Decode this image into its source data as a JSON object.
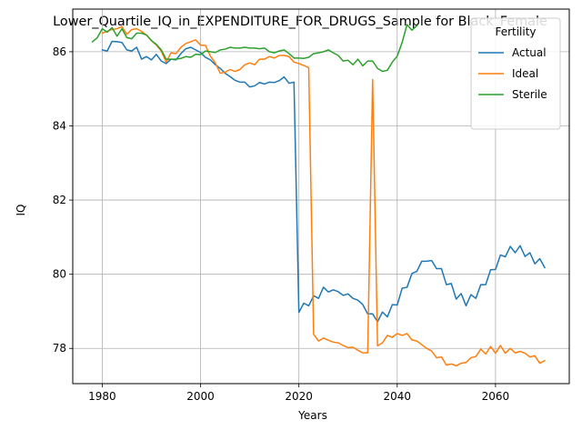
{
  "chart_data": {
    "type": "line",
    "title": "Lower_Quartile_IQ_in_EXPENDITURE_FOR_DRUGS_Sample for Black_Female",
    "xlabel": "Years",
    "ylabel": "IQ",
    "xlim": [
      1974,
      2075
    ],
    "ylim": [
      77.05,
      87.15
    ],
    "xticks": [
      1980,
      2000,
      2020,
      2040,
      2060
    ],
    "yticks": [
      78,
      80,
      82,
      84,
      86
    ],
    "grid": true,
    "legend": {
      "title": "Fertility",
      "placement": "upper right"
    },
    "series": [
      {
        "name": "Actual",
        "color": "#1f77b4",
        "x": [
          1980,
          1981,
          1982,
          1983,
          1984,
          1985,
          1986,
          1987,
          1988,
          1989,
          1990,
          1991,
          1992,
          1993,
          1994,
          1995,
          1996,
          1997,
          1998,
          1999,
          2000,
          2001,
          2002,
          2003,
          2004,
          2005,
          2006,
          2007,
          2008,
          2009,
          2010,
          2011,
          2012,
          2013,
          2014,
          2015,
          2016,
          2017,
          2018,
          2019,
          2020,
          2021,
          2022,
          2023,
          2024,
          2025,
          2026,
          2027,
          2028,
          2029,
          2030,
          2031,
          2032,
          2033,
          2034,
          2035,
          2036,
          2037,
          2038,
          2039,
          2040,
          2041,
          2042,
          2043,
          2044,
          2045,
          2046,
          2047,
          2048,
          2049,
          2050,
          2051,
          2052,
          2053,
          2054,
          2055,
          2056,
          2057,
          2058,
          2059,
          2060,
          2061,
          2062,
          2063,
          2064,
          2065,
          2066,
          2067,
          2068,
          2069,
          2070
        ],
        "values": [
          86.05,
          86.02,
          86.28,
          86.27,
          86.25,
          86.05,
          86.02,
          86.12,
          85.8,
          85.87,
          85.78,
          85.93,
          85.75,
          85.68,
          85.8,
          85.78,
          85.95,
          86.08,
          86.12,
          86.05,
          85.98,
          85.85,
          85.78,
          85.65,
          85.55,
          85.42,
          85.33,
          85.23,
          85.18,
          85.18,
          85.05,
          85.08,
          85.17,
          85.13,
          85.18,
          85.17,
          85.22,
          85.32,
          85.15,
          85.18,
          78.97,
          79.22,
          79.15,
          79.42,
          79.35,
          79.65,
          79.52,
          79.58,
          79.53,
          79.43,
          79.47,
          79.35,
          79.3,
          79.18,
          78.93,
          78.93,
          78.72,
          78.98,
          78.85,
          79.18,
          79.17,
          79.62,
          79.65,
          80.02,
          80.08,
          80.35,
          80.35,
          80.37,
          80.15,
          80.15,
          79.72,
          79.75,
          79.33,
          79.48,
          79.15,
          79.45,
          79.35,
          79.72,
          79.72,
          80.12,
          80.13,
          80.52,
          80.47,
          80.75,
          80.58,
          80.77,
          80.48,
          80.58,
          80.28,
          80.42,
          80.18
        ]
      },
      {
        "name": "Ideal",
        "color": "#ff7f0e",
        "x": [
          1980,
          1981,
          1982,
          1983,
          1984,
          1985,
          1986,
          1987,
          1988,
          1989,
          1990,
          1991,
          1992,
          1993,
          1994,
          1995,
          1996,
          1997,
          1998,
          1999,
          2000,
          2001,
          2002,
          2003,
          2004,
          2005,
          2006,
          2007,
          2008,
          2009,
          2010,
          2011,
          2012,
          2013,
          2014,
          2015,
          2016,
          2017,
          2018,
          2019,
          2020,
          2021,
          2022,
          2023,
          2024,
          2025,
          2026,
          2027,
          2028,
          2029,
          2030,
          2031,
          2032,
          2033,
          2034,
          2035,
          2036,
          2037,
          2038,
          2039,
          2040,
          2041,
          2042,
          2043,
          2044,
          2045,
          2046,
          2047,
          2048,
          2049,
          2050,
          2051,
          2052,
          2053,
          2054,
          2055,
          2056,
          2057,
          2058,
          2059,
          2060,
          2061,
          2062,
          2063,
          2064,
          2065,
          2066,
          2067,
          2068,
          2069,
          2070
        ],
        "values": [
          86.5,
          86.55,
          86.6,
          86.62,
          86.68,
          86.47,
          86.6,
          86.62,
          86.55,
          86.45,
          86.3,
          86.18,
          86.02,
          85.72,
          85.97,
          85.95,
          86.12,
          86.22,
          86.27,
          86.32,
          86.18,
          86.17,
          85.88,
          85.7,
          85.42,
          85.45,
          85.52,
          85.47,
          85.52,
          85.65,
          85.7,
          85.65,
          85.8,
          85.8,
          85.87,
          85.83,
          85.9,
          85.9,
          85.87,
          85.72,
          85.68,
          85.63,
          85.57,
          78.38,
          78.2,
          78.28,
          78.22,
          78.17,
          78.15,
          78.08,
          78.02,
          78.03,
          77.95,
          77.88,
          77.88,
          85.25,
          78.07,
          78.15,
          78.35,
          78.3,
          78.4,
          78.35,
          78.4,
          78.23,
          78.2,
          78.1,
          78.0,
          77.93,
          77.75,
          77.77,
          77.55,
          77.58,
          77.53,
          77.6,
          77.62,
          77.75,
          77.78,
          77.98,
          77.85,
          78.05,
          77.87,
          78.08,
          77.87,
          78.0,
          77.88,
          77.92,
          77.87,
          77.77,
          77.8,
          77.6,
          77.67
        ]
      },
      {
        "name": "Sterile",
        "color": "#2ca02c",
        "x": [
          1978,
          1979,
          1980,
          1981,
          1982,
          1983,
          1984,
          1985,
          1986,
          1987,
          1988,
          1989,
          1990,
          1991,
          1992,
          1993,
          1994,
          1995,
          1996,
          1997,
          1998,
          1999,
          2000,
          2001,
          2002,
          2003,
          2004,
          2005,
          2006,
          2007,
          2008,
          2009,
          2010,
          2011,
          2012,
          2013,
          2014,
          2015,
          2016,
          2017,
          2018,
          2019,
          2020,
          2021,
          2022,
          2023,
          2024,
          2025,
          2026,
          2027,
          2028,
          2029,
          2030,
          2031,
          2032,
          2033,
          2034,
          2035,
          2036,
          2037,
          2038,
          2039,
          2040,
          2041,
          2042,
          2043,
          2044
        ],
        "values": [
          86.27,
          86.38,
          86.62,
          86.53,
          86.65,
          86.42,
          86.62,
          86.38,
          86.35,
          86.5,
          86.5,
          86.45,
          86.3,
          86.2,
          86.05,
          85.8,
          85.8,
          85.8,
          85.82,
          85.87,
          85.85,
          85.93,
          85.92,
          86.02,
          86.0,
          85.98,
          86.05,
          86.07,
          86.12,
          86.1,
          86.1,
          86.12,
          86.1,
          86.1,
          86.08,
          86.1,
          86.0,
          85.97,
          86.02,
          86.05,
          85.95,
          85.83,
          85.83,
          85.82,
          85.85,
          85.95,
          85.97,
          86.0,
          86.05,
          85.97,
          85.9,
          85.75,
          85.77,
          85.65,
          85.8,
          85.62,
          85.75,
          85.75,
          85.55,
          85.47,
          85.5,
          85.72,
          85.88,
          86.25,
          86.73,
          86.58,
          86.7
        ]
      }
    ]
  }
}
